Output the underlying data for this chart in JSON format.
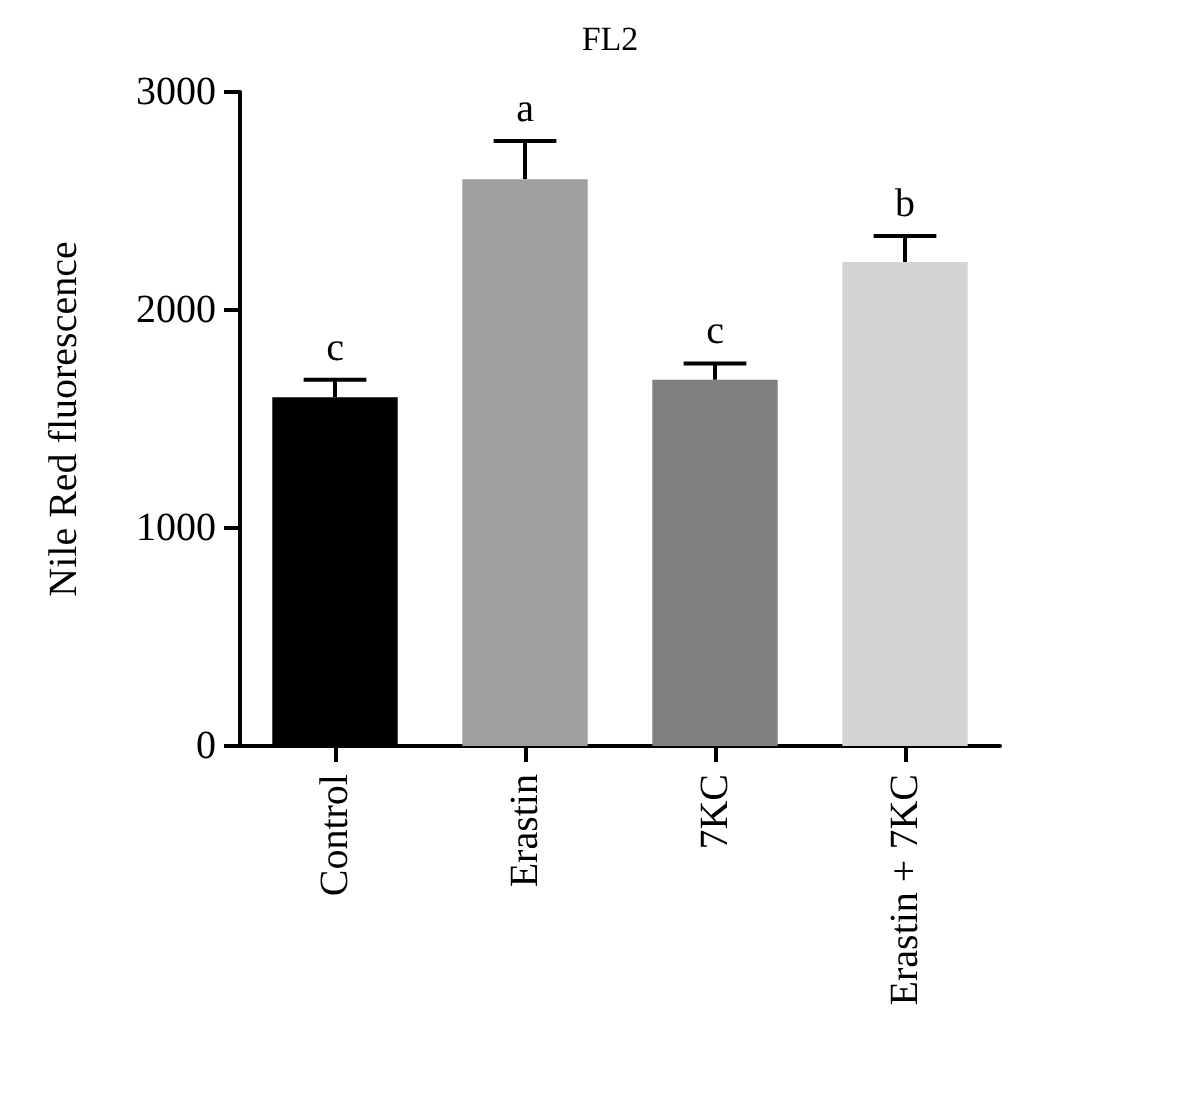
{
  "chart_data": {
    "type": "bar",
    "title": "FL2",
    "ylabel": "Nile Red fluorescence",
    "categories": [
      "Control",
      "Erastin",
      "7KC",
      "Erastin + 7KC"
    ],
    "values": [
      1600,
      2600,
      1680,
      2220
    ],
    "colors": [
      "#000000",
      "#a0a0a2",
      "#808080",
      "#d3d3d3"
    ],
    "errors": [
      80,
      175,
      75,
      120
    ],
    "ylim": [
      0,
      3000
    ],
    "yticks": [
      0,
      1000,
      2000,
      3000
    ],
    "grid": false,
    "annotations": [
      {
        "text": "c",
        "x": "Control",
        "y": 1680
      },
      {
        "text": "a",
        "x": "Erastin",
        "y": 2775
      },
      {
        "text": "c",
        "x": "7KC",
        "y": 1755
      },
      {
        "text": "b",
        "x": "Erastin + 7KC",
        "y": 2340
      }
    ]
  }
}
